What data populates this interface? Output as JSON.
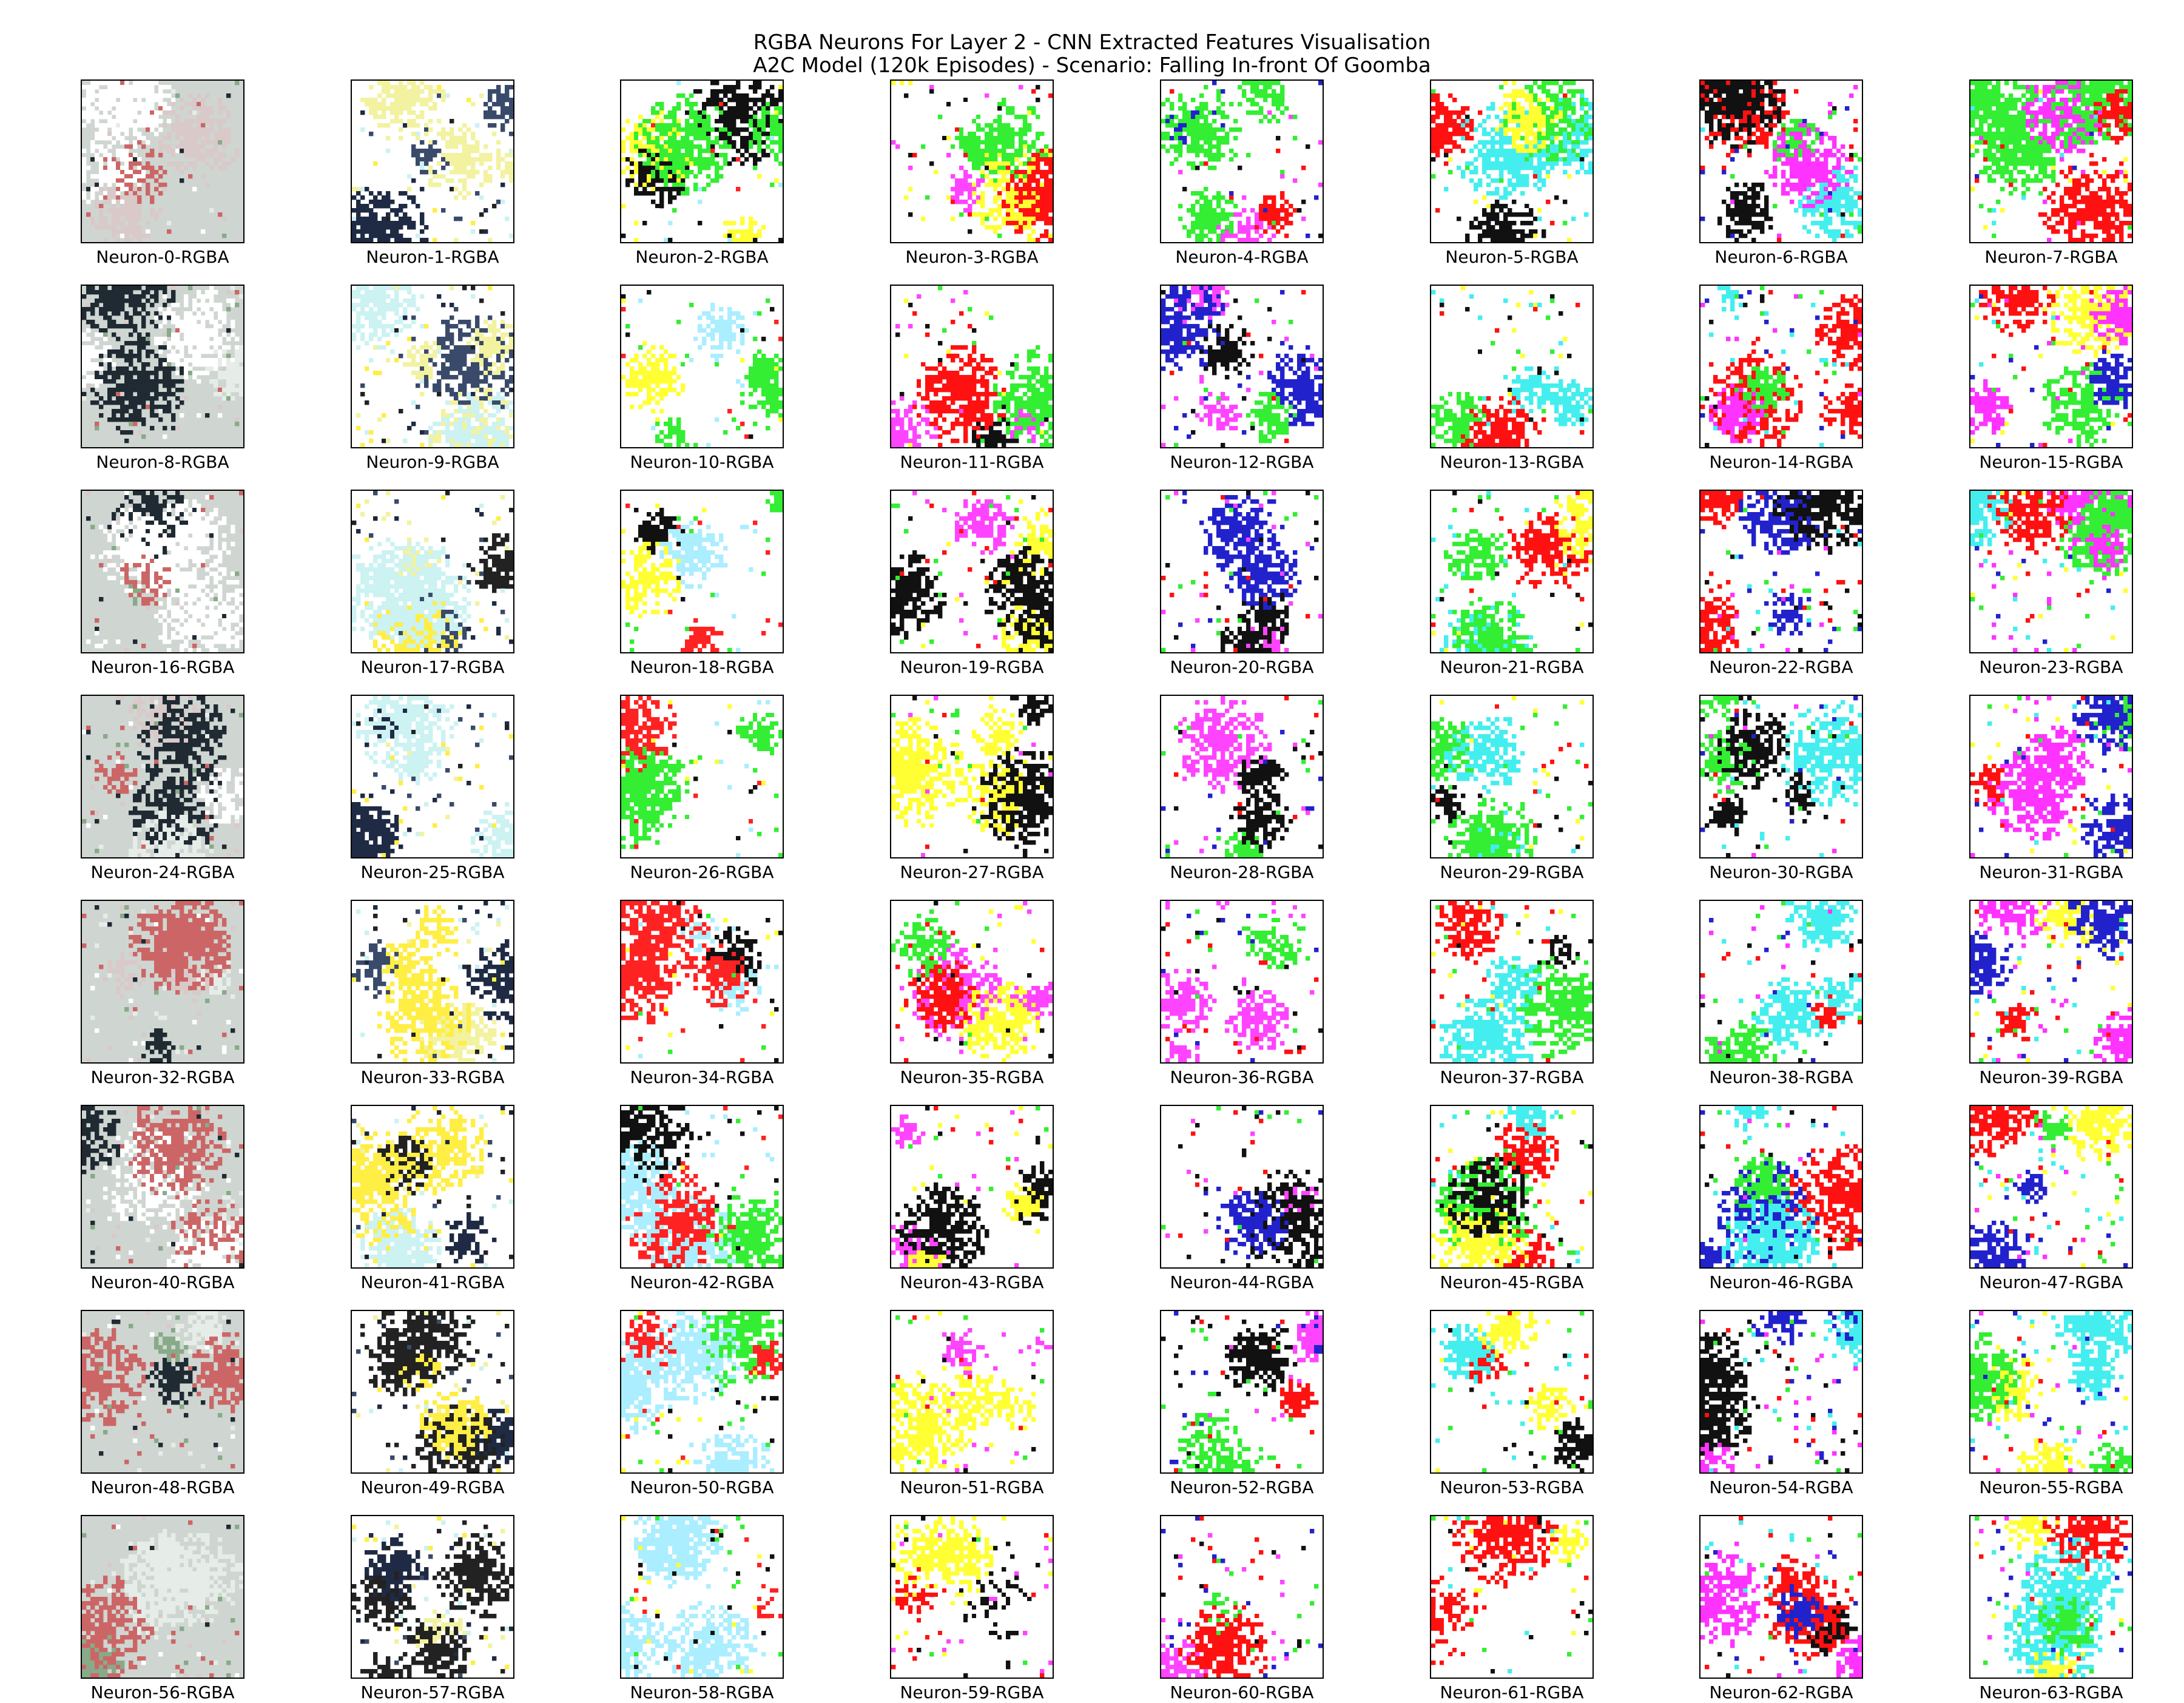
{
  "figure": {
    "title_line1": "RGBA Neurons For Layer 2 - CNN Extracted Features Visualisation",
    "title_line2": "A2C Model (120k Episodes) - Scenario: Falling In-front Of Goomba"
  },
  "grid": {
    "rows": 8,
    "cols": 8,
    "column_palettes": [
      [
        "#cfd6d1",
        "#e6ece8",
        "#d9c9c9",
        "#ffffff",
        "#1f2a33",
        "#cc6666",
        "#88aa88"
      ],
      [
        "#ffffff",
        "#1f2a44",
        "#3a4a6a",
        "#f2f2a0",
        "#ccf2f2",
        "#ffee44",
        "#222222"
      ],
      [
        "#ffffff",
        "#ffffff",
        "#111111",
        "#ffff33",
        "#33ee33",
        "#ff2222",
        "#aaeeff"
      ],
      [
        "#ffffff",
        "#ffffff",
        "#ff1111",
        "#33ee33",
        "#111111",
        "#ff44ff",
        "#ffff33"
      ],
      [
        "#ffffff",
        "#ffffff",
        "#ff1111",
        "#33ee33",
        "#111111",
        "#ff44ff",
        "#2222cc"
      ],
      [
        "#ffffff",
        "#ffffff",
        "#111111",
        "#ff1111",
        "#33ee33",
        "#44eeee",
        "#ffff33"
      ],
      [
        "#ffffff",
        "#ff33ff",
        "#111111",
        "#44eeee",
        "#ff1111",
        "#33ee33",
        "#2222cc"
      ],
      [
        "#ffffff",
        "#44eeee",
        "#ff1111",
        "#ff33ff",
        "#33ee33",
        "#2222cc",
        "#ffff33"
      ]
    ],
    "neurons": [
      {
        "label": "Neuron-0-RGBA"
      },
      {
        "label": "Neuron-1-RGBA"
      },
      {
        "label": "Neuron-2-RGBA"
      },
      {
        "label": "Neuron-3-RGBA"
      },
      {
        "label": "Neuron-4-RGBA"
      },
      {
        "label": "Neuron-5-RGBA"
      },
      {
        "label": "Neuron-6-RGBA"
      },
      {
        "label": "Neuron-7-RGBA"
      },
      {
        "label": "Neuron-8-RGBA"
      },
      {
        "label": "Neuron-9-RGBA"
      },
      {
        "label": "Neuron-10-RGBA"
      },
      {
        "label": "Neuron-11-RGBA"
      },
      {
        "label": "Neuron-12-RGBA"
      },
      {
        "label": "Neuron-13-RGBA"
      },
      {
        "label": "Neuron-14-RGBA"
      },
      {
        "label": "Neuron-15-RGBA"
      },
      {
        "label": "Neuron-16-RGBA"
      },
      {
        "label": "Neuron-17-RGBA"
      },
      {
        "label": "Neuron-18-RGBA"
      },
      {
        "label": "Neuron-19-RGBA"
      },
      {
        "label": "Neuron-20-RGBA"
      },
      {
        "label": "Neuron-21-RGBA"
      },
      {
        "label": "Neuron-22-RGBA"
      },
      {
        "label": "Neuron-23-RGBA"
      },
      {
        "label": "Neuron-24-RGBA"
      },
      {
        "label": "Neuron-25-RGBA"
      },
      {
        "label": "Neuron-26-RGBA"
      },
      {
        "label": "Neuron-27-RGBA"
      },
      {
        "label": "Neuron-28-RGBA"
      },
      {
        "label": "Neuron-29-RGBA"
      },
      {
        "label": "Neuron-30-RGBA"
      },
      {
        "label": "Neuron-31-RGBA"
      },
      {
        "label": "Neuron-32-RGBA"
      },
      {
        "label": "Neuron-33-RGBA"
      },
      {
        "label": "Neuron-34-RGBA"
      },
      {
        "label": "Neuron-35-RGBA"
      },
      {
        "label": "Neuron-36-RGBA"
      },
      {
        "label": "Neuron-37-RGBA"
      },
      {
        "label": "Neuron-38-RGBA"
      },
      {
        "label": "Neuron-39-RGBA"
      },
      {
        "label": "Neuron-40-RGBA"
      },
      {
        "label": "Neuron-41-RGBA"
      },
      {
        "label": "Neuron-42-RGBA"
      },
      {
        "label": "Neuron-43-RGBA"
      },
      {
        "label": "Neuron-44-RGBA"
      },
      {
        "label": "Neuron-45-RGBA"
      },
      {
        "label": "Neuron-46-RGBA"
      },
      {
        "label": "Neuron-47-RGBA"
      },
      {
        "label": "Neuron-48-RGBA"
      },
      {
        "label": "Neuron-49-RGBA"
      },
      {
        "label": "Neuron-50-RGBA"
      },
      {
        "label": "Neuron-51-RGBA"
      },
      {
        "label": "Neuron-52-RGBA"
      },
      {
        "label": "Neuron-53-RGBA"
      },
      {
        "label": "Neuron-54-RGBA"
      },
      {
        "label": "Neuron-55-RGBA"
      },
      {
        "label": "Neuron-56-RGBA"
      },
      {
        "label": "Neuron-57-RGBA"
      },
      {
        "label": "Neuron-58-RGBA"
      },
      {
        "label": "Neuron-59-RGBA"
      },
      {
        "label": "Neuron-60-RGBA"
      },
      {
        "label": "Neuron-61-RGBA"
      },
      {
        "label": "Neuron-62-RGBA"
      },
      {
        "label": "Neuron-63-RGBA"
      }
    ]
  }
}
